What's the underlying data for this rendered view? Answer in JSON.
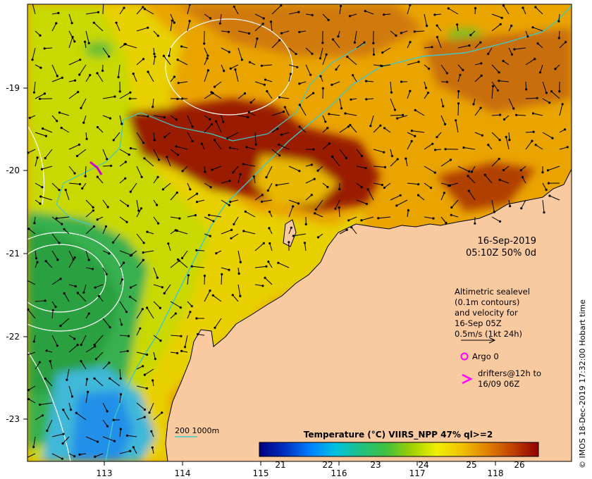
{
  "map": {
    "date": "16-Sep-2019",
    "time_line": "05:10Z  50% 0d",
    "lat_labels": [
      "-19",
      "-20",
      "-21",
      "-22",
      "-23"
    ],
    "lon_labels": [
      "113",
      "114",
      "115",
      "116",
      "117",
      "118"
    ],
    "legend": {
      "altimetric_lines": [
        "Altimetric sealevel",
        "(0.1m contours)",
        "and velocity for",
        "16-Sep 05Z",
        "0.5m/s (1kt 24h)"
      ],
      "argo_label": "Argo 0",
      "drifters_lines": [
        "drifters@12h to",
        "16/09 06Z"
      ],
      "bathy_label": "200  1000m"
    },
    "colorbar": {
      "title": "Temperature (°C) VIIRS_NPP 47% ql>=2",
      "ticks": [
        "21",
        "22",
        "23",
        "24",
        "25",
        "26"
      ],
      "stops": [
        "#000080",
        "#0030c0",
        "#0080ff",
        "#00c0e0",
        "#20c080",
        "#40c040",
        "#a0d000",
        "#f0f000",
        "#f0c000",
        "#e08000",
        "#c04000",
        "#900000"
      ]
    },
    "credit": "© IMOS 18-Dec-2019 17:32:00 Hobart time",
    "colors": {
      "land": "#f9c9a0",
      "cold_water": "#30b050",
      "cool_water": "#3090e0",
      "warm_water": "#e8a000",
      "hot_water": "#9a1000",
      "bathy_line": "#40c8c8",
      "argo_marker": "#ff00ff",
      "drifter_marker": "#cc00cc"
    }
  }
}
